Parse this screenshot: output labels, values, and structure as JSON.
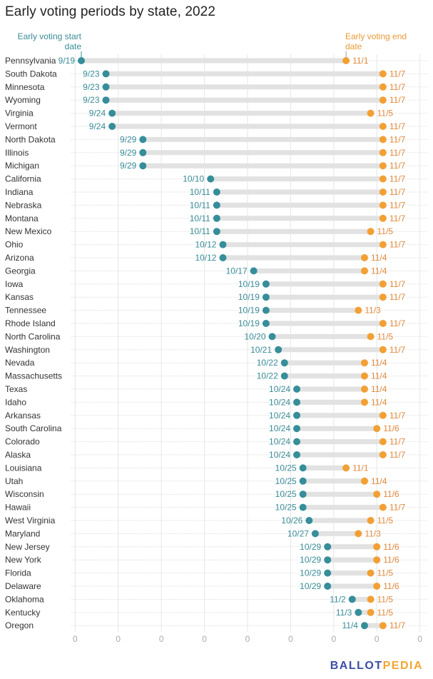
{
  "chart_data": {
    "type": "dumbbell",
    "title": "Early voting periods by state, 2022",
    "year": 2022,
    "start_label": "Early voting start date",
    "end_label": "Early voting end date",
    "x_tick_labels": [
      "0",
      "0",
      "0",
      "0",
      "0",
      "0",
      "0",
      "0",
      "0"
    ],
    "grid": true,
    "colors": {
      "start": "#358e9a",
      "end": "#f2a034",
      "range_bar": "#e2e2e2"
    },
    "rows": [
      {
        "state": "Pennsylvania",
        "start": "9/19",
        "end": "11/1"
      },
      {
        "state": "South Dakota",
        "start": "9/23",
        "end": "11/7"
      },
      {
        "state": "Minnesota",
        "start": "9/23",
        "end": "11/7"
      },
      {
        "state": "Wyoming",
        "start": "9/23",
        "end": "11/7"
      },
      {
        "state": "Virginia",
        "start": "9/24",
        "end": "11/5"
      },
      {
        "state": "Vermont",
        "start": "9/24",
        "end": "11/7"
      },
      {
        "state": "North Dakota",
        "start": "9/29",
        "end": "11/7"
      },
      {
        "state": "Illinois",
        "start": "9/29",
        "end": "11/7"
      },
      {
        "state": "Michigan",
        "start": "9/29",
        "end": "11/7"
      },
      {
        "state": "California",
        "start": "10/10",
        "end": "11/7"
      },
      {
        "state": "Indiana",
        "start": "10/11",
        "end": "11/7"
      },
      {
        "state": "Nebraska",
        "start": "10/11",
        "end": "11/7"
      },
      {
        "state": "Montana",
        "start": "10/11",
        "end": "11/7"
      },
      {
        "state": "New Mexico",
        "start": "10/11",
        "end": "11/5"
      },
      {
        "state": "Ohio",
        "start": "10/12",
        "end": "11/7"
      },
      {
        "state": "Arizona",
        "start": "10/12",
        "end": "11/4"
      },
      {
        "state": "Georgia",
        "start": "10/17",
        "end": "11/4"
      },
      {
        "state": "Iowa",
        "start": "10/19",
        "end": "11/7"
      },
      {
        "state": "Kansas",
        "start": "10/19",
        "end": "11/7"
      },
      {
        "state": "Tennessee",
        "start": "10/19",
        "end": "11/3"
      },
      {
        "state": "Rhode Island",
        "start": "10/19",
        "end": "11/7"
      },
      {
        "state": "North Carolina",
        "start": "10/20",
        "end": "11/5"
      },
      {
        "state": "Washington",
        "start": "10/21",
        "end": "11/7"
      },
      {
        "state": "Nevada",
        "start": "10/22",
        "end": "11/4"
      },
      {
        "state": "Massachusetts",
        "start": "10/22",
        "end": "11/4"
      },
      {
        "state": "Texas",
        "start": "10/24",
        "end": "11/4"
      },
      {
        "state": "Idaho",
        "start": "10/24",
        "end": "11/4"
      },
      {
        "state": "Arkansas",
        "start": "10/24",
        "end": "11/7"
      },
      {
        "state": "South Carolina",
        "start": "10/24",
        "end": "11/6"
      },
      {
        "state": "Colorado",
        "start": "10/24",
        "end": "11/7"
      },
      {
        "state": "Alaska",
        "start": "10/24",
        "end": "11/7"
      },
      {
        "state": "Louisiana",
        "start": "10/25",
        "end": "11/1"
      },
      {
        "state": "Utah",
        "start": "10/25",
        "end": "11/4"
      },
      {
        "state": "Wisconsin",
        "start": "10/25",
        "end": "11/6"
      },
      {
        "state": "Hawaii",
        "start": "10/25",
        "end": "11/7"
      },
      {
        "state": "West Virginia",
        "start": "10/26",
        "end": "11/5"
      },
      {
        "state": "Maryland",
        "start": "10/27",
        "end": "11/3"
      },
      {
        "state": "New Jersey",
        "start": "10/29",
        "end": "11/6"
      },
      {
        "state": "New York",
        "start": "10/29",
        "end": "11/6"
      },
      {
        "state": "Florida",
        "start": "10/29",
        "end": "11/5"
      },
      {
        "state": "Delaware",
        "start": "10/29",
        "end": "11/6"
      },
      {
        "state": "Oklahoma",
        "start": "11/2",
        "end": "11/5"
      },
      {
        "state": "Kentucky",
        "start": "11/3",
        "end": "11/5"
      },
      {
        "state": "Oregon",
        "start": "11/4",
        "end": "11/7"
      }
    ]
  },
  "annotations": {
    "start_line1": "Early voting start",
    "start_line2": "date",
    "end_line1": "Early voting end",
    "end_line2": "date"
  },
  "branding": {
    "logo_part1": "BALLOT",
    "logo_part2": "PEDIA"
  }
}
